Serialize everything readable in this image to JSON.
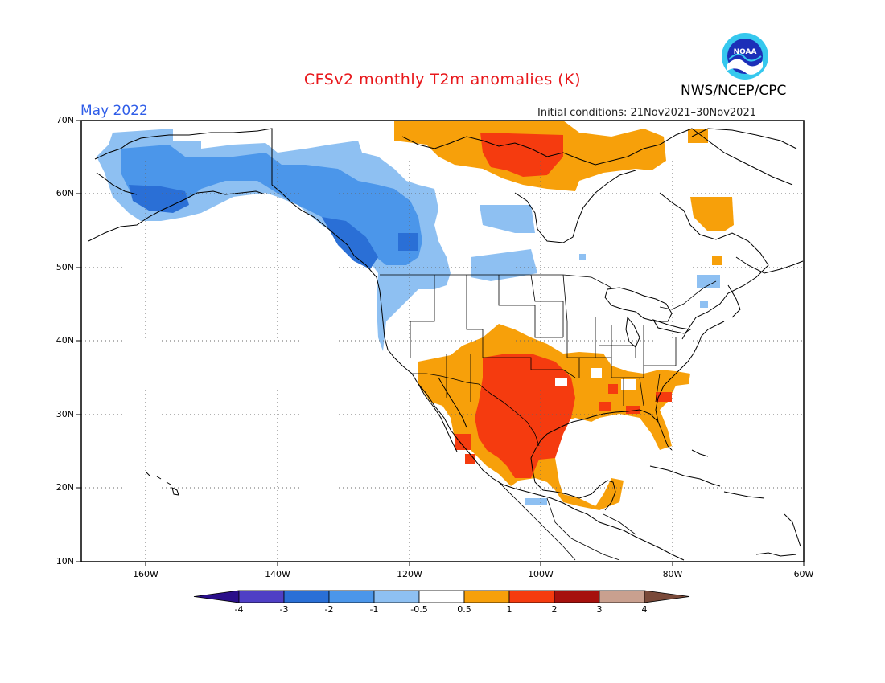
{
  "title": "CFSv2 monthly T2m anomalies (K)",
  "agency": "NWS/NCEP/CPC",
  "logo": {
    "text": "NOAA",
    "icon": "noaa-logo-icon"
  },
  "month_label": "May 2022",
  "init_label": "Initial conditions: 21Nov2021–30Nov2021",
  "lat_labels": [
    "70N",
    "60N",
    "50N",
    "40N",
    "30N",
    "20N",
    "10N"
  ],
  "lon_labels": [
    "160W",
    "140W",
    "120W",
    "100W",
    "80W",
    "60W"
  ],
  "colorbar": {
    "labels": [
      "-4",
      "-3",
      "-2",
      "-1",
      "-0.5",
      "0.5",
      "1",
      "2",
      "3",
      "4"
    ],
    "colors": [
      "#2a0f8a",
      "#4f3fc5",
      "#2a6fd6",
      "#4b96ea",
      "#8ec0f2",
      "#ffffff",
      "#f7a00a",
      "#f53b0f",
      "#a6100d",
      "#c9a08f",
      "#7a4a3a"
    ]
  },
  "colors": {
    "title": "#e8171b",
    "month": "#2f5de8",
    "warm_1": "#f7a00a",
    "warm_2": "#f53b0f",
    "cool_1": "#8ec0f2",
    "cool_2": "#4b96ea",
    "cool_3": "#2a6fd6"
  }
}
